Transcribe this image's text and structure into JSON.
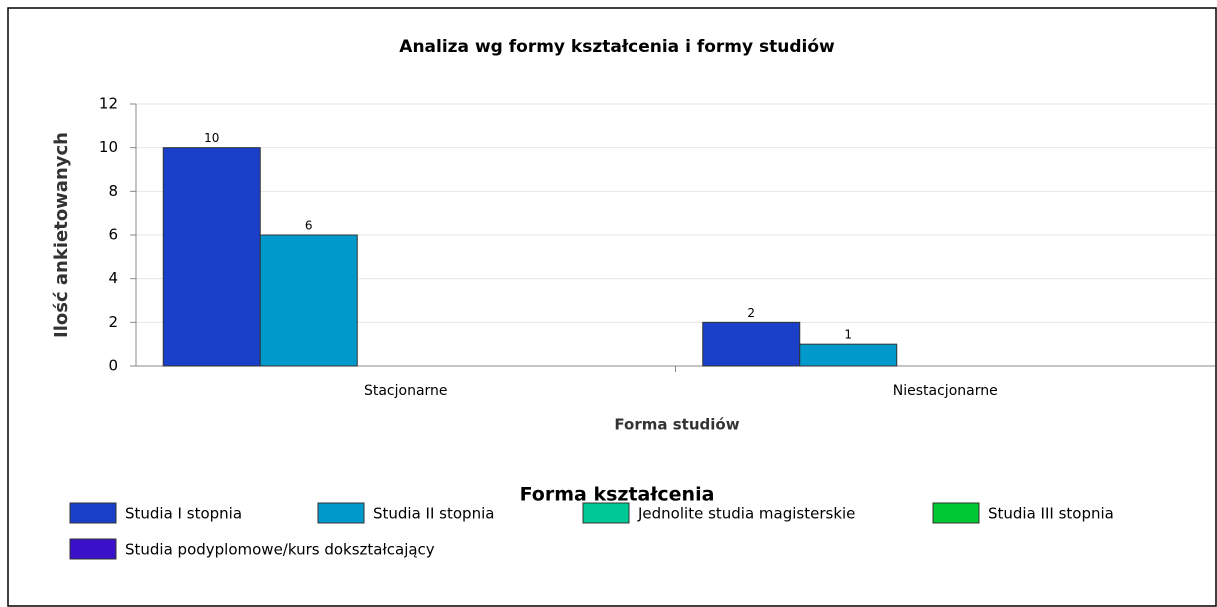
{
  "chart_data": {
    "type": "bar",
    "title": "Analiza wg formy kształcenia i formy studiów",
    "x_label": "Forma studiów",
    "y_label": "Ilość ankietowanych",
    "legend_title": "Forma kształcenia",
    "categories": [
      "Stacjonarne",
      "Niestacjonarne"
    ],
    "series": [
      {
        "name": "Studia I stopnia",
        "color": "#1a3fc8",
        "values": [
          10,
          2
        ]
      },
      {
        "name": "Studia II stopnia",
        "color": "#0099cc",
        "values": [
          6,
          1
        ]
      },
      {
        "name": "Jednolite studia magisterskie",
        "color": "#00c896",
        "values": [
          0,
          0
        ]
      },
      {
        "name": "Studia III stopnia",
        "color": "#00c832",
        "values": [
          0,
          0
        ]
      },
      {
        "name": "Studia podyplomowe/kurs dokształcający",
        "color": "#3a10c8",
        "values": [
          0,
          0
        ]
      }
    ],
    "ylim": [
      0,
      12
    ],
    "yticks": [
      0,
      2,
      4,
      6,
      8,
      10,
      12
    ],
    "grid": true,
    "legend": "bottom"
  }
}
